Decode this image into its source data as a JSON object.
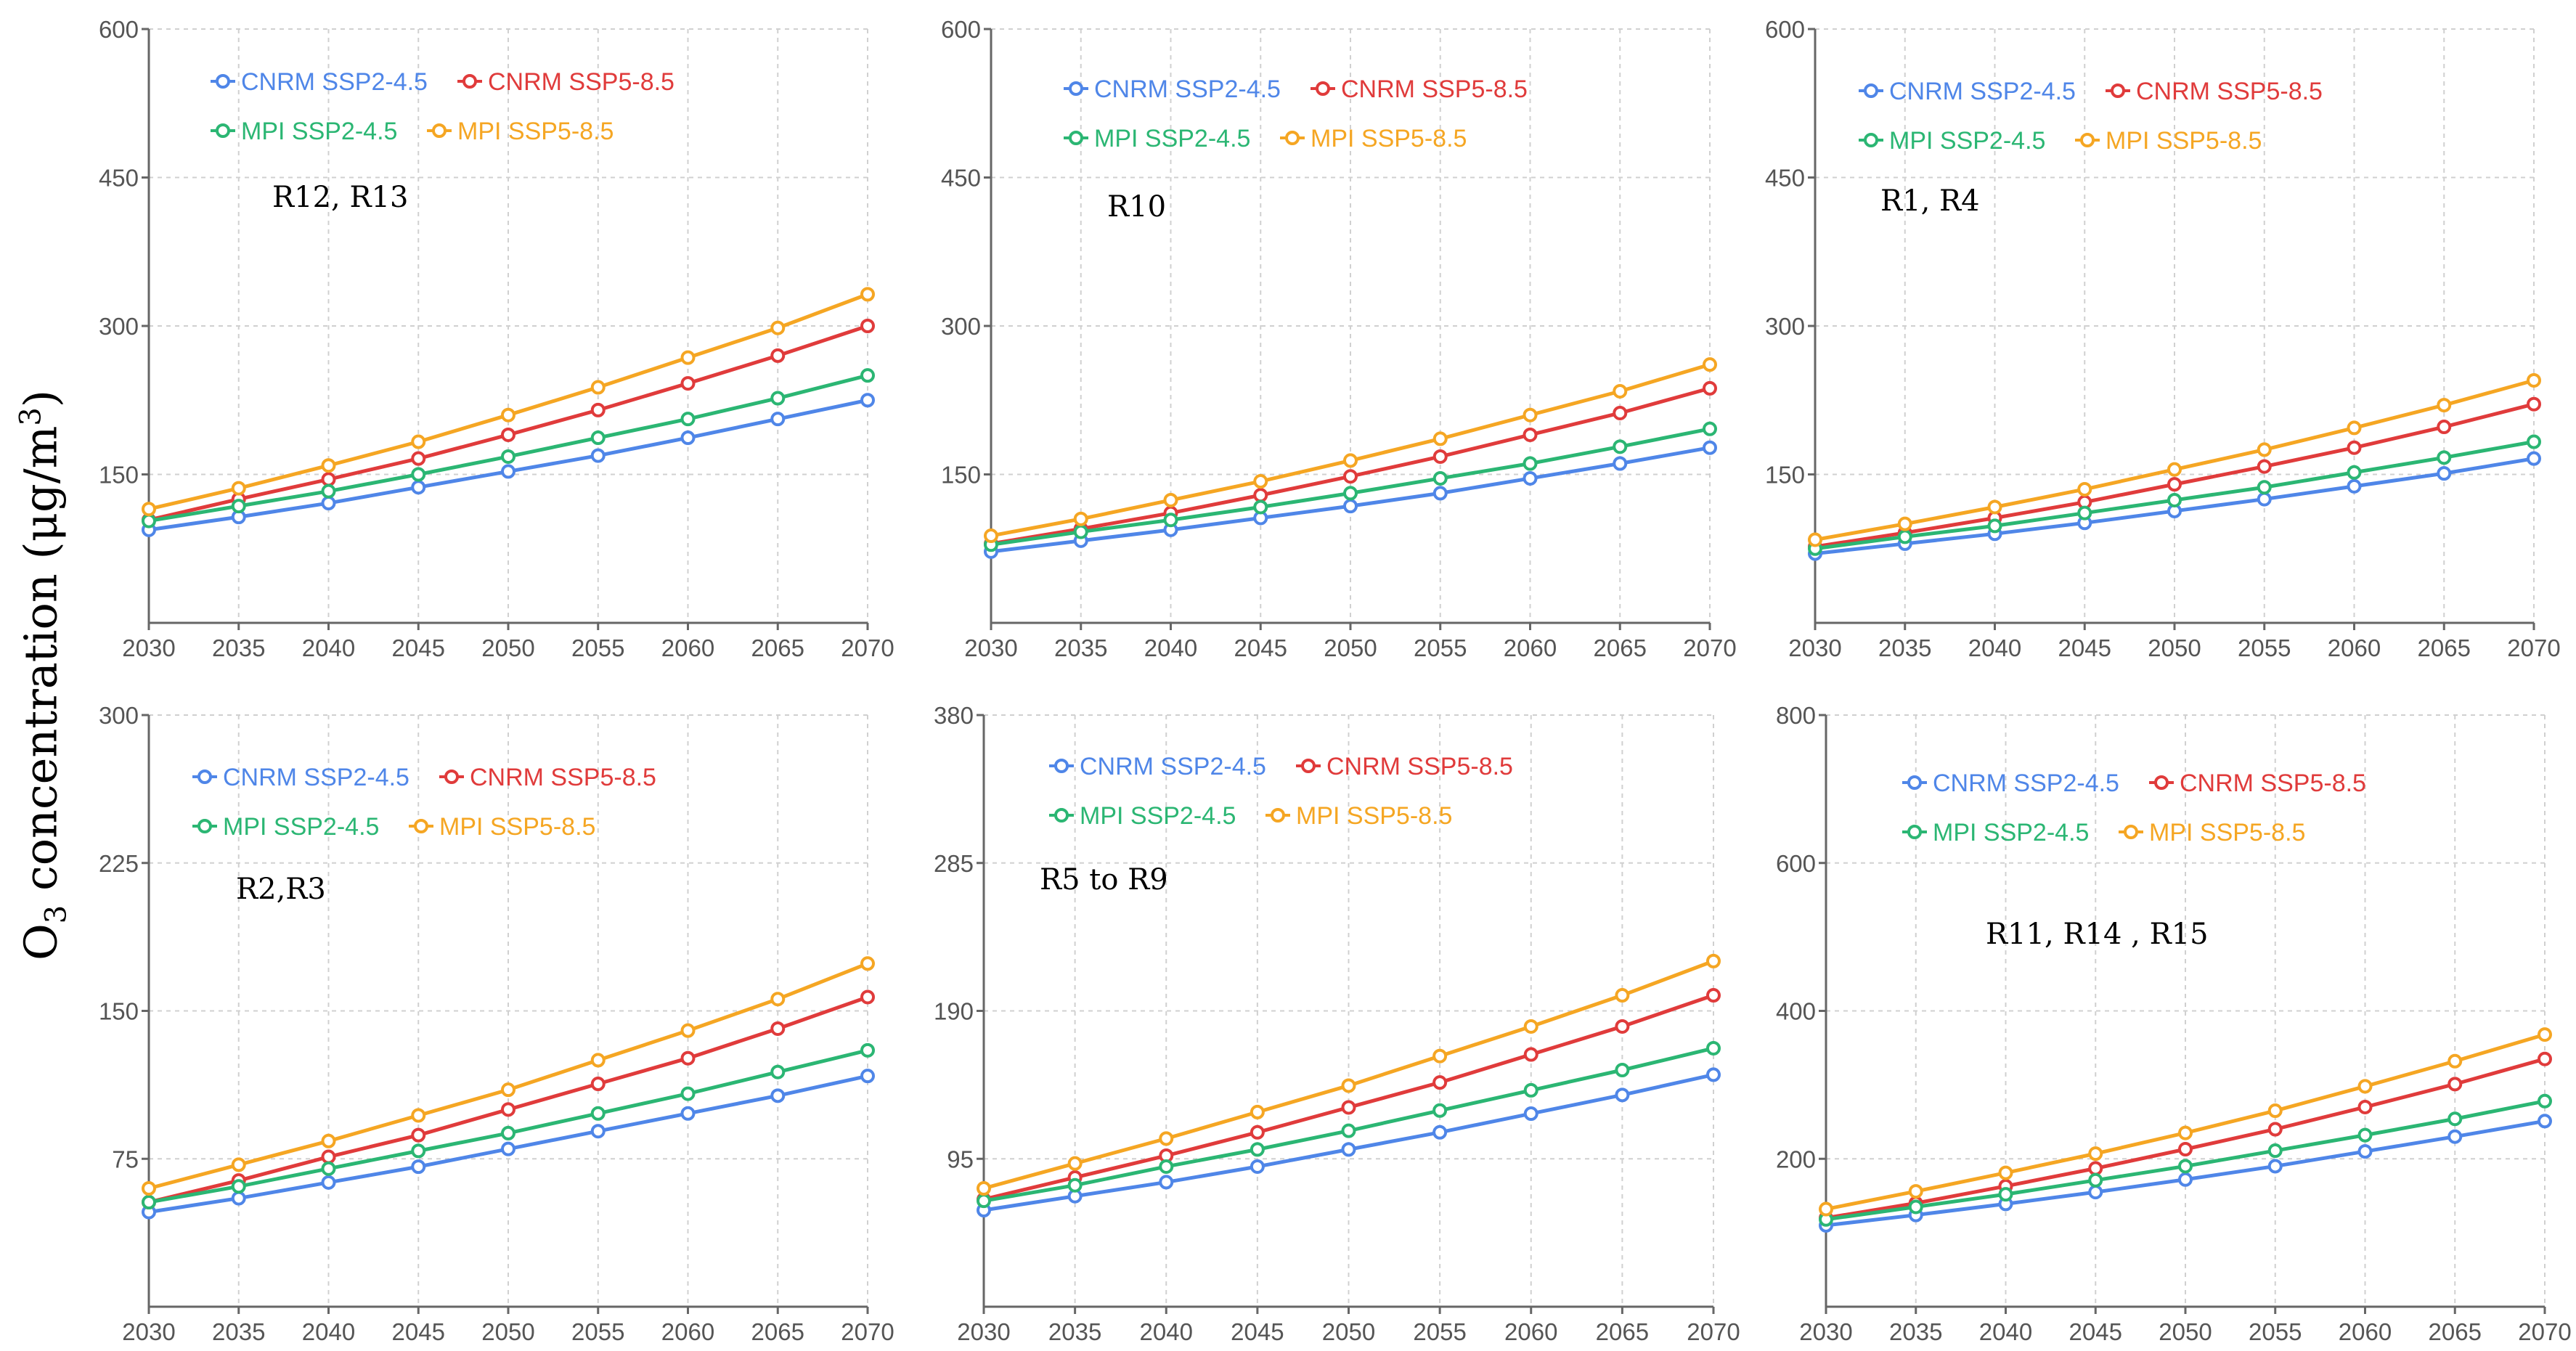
{
  "figure": {
    "ylabel_prefix": "O",
    "ylabel_sub": "3",
    "ylabel_mid": " concentration (μg/m",
    "ylabel_sup": "3",
    "ylabel_suffix": ")"
  },
  "colors": {
    "CNRM SSP2-4.5": "#4f86e8",
    "CNRM SSP5-8.5": "#e03b3b",
    "MPI SSP2-4.5": "#2bb673",
    "MPI SSP5-8.5": "#f5a623"
  },
  "chart_data": [
    {
      "type": "line",
      "title": "R12, R13",
      "x": [
        2030,
        2035,
        2040,
        2045,
        2050,
        2055,
        2060,
        2065,
        2070
      ],
      "xticks": [
        "2030",
        "2035",
        "2040",
        "2045",
        "2050",
        "2055",
        "2060",
        "2065",
        "2070"
      ],
      "yticks": [
        "150",
        "300",
        "450",
        "600"
      ],
      "ylim": [
        0,
        600
      ],
      "grid": true,
      "legend": "top-left",
      "series": [
        {
          "name": "CNRM SSP2-4.5",
          "values": [
            94,
            107,
            121,
            137,
            153,
            169,
            187,
            206,
            225
          ]
        },
        {
          "name": "CNRM SSP5-8.5",
          "values": [
            104,
            125,
            145,
            166,
            190,
            215,
            242,
            270,
            300
          ]
        },
        {
          "name": "MPI SSP2-4.5",
          "values": [
            103,
            118,
            133,
            150,
            168,
            187,
            206,
            227,
            250
          ]
        },
        {
          "name": "MPI SSP5-8.5",
          "values": [
            115,
            136,
            159,
            183,
            210,
            238,
            268,
            298,
            332
          ]
        }
      ]
    },
    {
      "type": "line",
      "title": "R10",
      "x": [
        2030,
        2035,
        2040,
        2045,
        2050,
        2055,
        2060,
        2065,
        2070
      ],
      "xticks": [
        "2030",
        "2035",
        "2040",
        "2045",
        "2050",
        "2055",
        "2060",
        "2065",
        "2070"
      ],
      "yticks": [
        "150",
        "300",
        "450",
        "600"
      ],
      "ylim": [
        0,
        600
      ],
      "grid": true,
      "legend": "top-left",
      "series": [
        {
          "name": "CNRM SSP2-4.5",
          "values": [
            72,
            83,
            94,
            106,
            118,
            131,
            146,
            161,
            177
          ]
        },
        {
          "name": "CNRM SSP5-8.5",
          "values": [
            80,
            95,
            111,
            129,
            148,
            168,
            190,
            212,
            237
          ]
        },
        {
          "name": "MPI SSP2-4.5",
          "values": [
            79,
            92,
            104,
            117,
            131,
            146,
            161,
            178,
            196
          ]
        },
        {
          "name": "MPI SSP5-8.5",
          "values": [
            88,
            105,
            124,
            143,
            164,
            186,
            210,
            234,
            261
          ]
        }
      ]
    },
    {
      "type": "line",
      "title": "R1, R4",
      "x": [
        2030,
        2035,
        2040,
        2045,
        2050,
        2055,
        2060,
        2065,
        2070
      ],
      "xticks": [
        "2030",
        "2035",
        "2040",
        "2045",
        "2050",
        "2055",
        "2060",
        "2065",
        "2070"
      ],
      "yticks": [
        "150",
        "300",
        "450",
        "600"
      ],
      "ylim": [
        0,
        600
      ],
      "grid": true,
      "legend": "top-left",
      "series": [
        {
          "name": "CNRM SSP2-4.5",
          "values": [
            70,
            80,
            90,
            101,
            113,
            125,
            138,
            151,
            166
          ]
        },
        {
          "name": "CNRM SSP5-8.5",
          "values": [
            77,
            91,
            106,
            122,
            140,
            158,
            177,
            198,
            221
          ]
        },
        {
          "name": "MPI SSP2-4.5",
          "values": [
            75,
            87,
            98,
            111,
            124,
            137,
            152,
            167,
            183
          ]
        },
        {
          "name": "MPI SSP5-8.5",
          "values": [
            84,
            100,
            117,
            135,
            155,
            175,
            197,
            220,
            245
          ]
        }
      ]
    },
    {
      "type": "line",
      "title": "R2,R3",
      "x": [
        2030,
        2035,
        2040,
        2045,
        2050,
        2055,
        2060,
        2065,
        2070
      ],
      "xticks": [
        "2030",
        "2035",
        "2040",
        "2045",
        "2050",
        "2055",
        "2060",
        "2065",
        "2070"
      ],
      "yticks": [
        "75",
        "150",
        "225",
        "300"
      ],
      "ylim": [
        0,
        300
      ],
      "grid": true,
      "legend": "top-left",
      "series": [
        {
          "name": "CNRM SSP2-4.5",
          "values": [
            48,
            55,
            63,
            71,
            80,
            89,
            98,
            107,
            117
          ]
        },
        {
          "name": "CNRM SSP5-8.5",
          "values": [
            53,
            64,
            76,
            87,
            100,
            113,
            126,
            141,
            157
          ]
        },
        {
          "name": "MPI SSP2-4.5",
          "values": [
            53,
            61,
            70,
            79,
            88,
            98,
            108,
            119,
            130
          ]
        },
        {
          "name": "MPI SSP5-8.5",
          "values": [
            60,
            72,
            84,
            97,
            110,
            125,
            140,
            156,
            174
          ]
        }
      ]
    },
    {
      "type": "line",
      "title": "R5 to R9",
      "x": [
        2030,
        2035,
        2040,
        2045,
        2050,
        2055,
        2060,
        2065,
        2070
      ],
      "xticks": [
        "2030",
        "2035",
        "2040",
        "2045",
        "2050",
        "2055",
        "2060",
        "2065",
        "2070"
      ],
      "yticks": [
        "95",
        "190",
        "285",
        "380"
      ],
      "ylim": [
        0,
        380
      ],
      "grid": true,
      "legend": "top-left",
      "series": [
        {
          "name": "CNRM SSP2-4.5",
          "values": [
            62,
            71,
            80,
            90,
            101,
            112,
            124,
            136,
            149
          ]
        },
        {
          "name": "CNRM SSP5-8.5",
          "values": [
            69,
            83,
            97,
            112,
            128,
            144,
            162,
            180,
            200
          ]
        },
        {
          "name": "MPI SSP2-4.5",
          "values": [
            68,
            78,
            90,
            101,
            113,
            126,
            139,
            152,
            166
          ]
        },
        {
          "name": "MPI SSP5-8.5",
          "values": [
            76,
            92,
            108,
            125,
            142,
            161,
            180,
            200,
            222
          ]
        }
      ]
    },
    {
      "type": "line",
      "title": "R11, R14 , R15",
      "x": [
        2030,
        2035,
        2040,
        2045,
        2050,
        2055,
        2060,
        2065,
        2070
      ],
      "xticks": [
        "2030",
        "2035",
        "2040",
        "2045",
        "2050",
        "2055",
        "2060",
        "2065",
        "2070"
      ],
      "yticks": [
        "200",
        "400",
        "600",
        "800"
      ],
      "ylim": [
        0,
        800
      ],
      "grid": true,
      "legend": "top-left",
      "series": [
        {
          "name": "CNRM SSP2-4.5",
          "values": [
            110,
            124,
            139,
            155,
            172,
            190,
            210,
            230,
            251
          ]
        },
        {
          "name": "CNRM SSP5-8.5",
          "values": [
            120,
            140,
            163,
            187,
            213,
            240,
            270,
            301,
            335
          ]
        },
        {
          "name": "MPI SSP2-4.5",
          "values": [
            118,
            135,
            152,
            171,
            190,
            211,
            232,
            254,
            278
          ]
        },
        {
          "name": "MPI SSP5-8.5",
          "values": [
            132,
            156,
            181,
            207,
            235,
            265,
            298,
            332,
            368
          ]
        }
      ]
    }
  ]
}
